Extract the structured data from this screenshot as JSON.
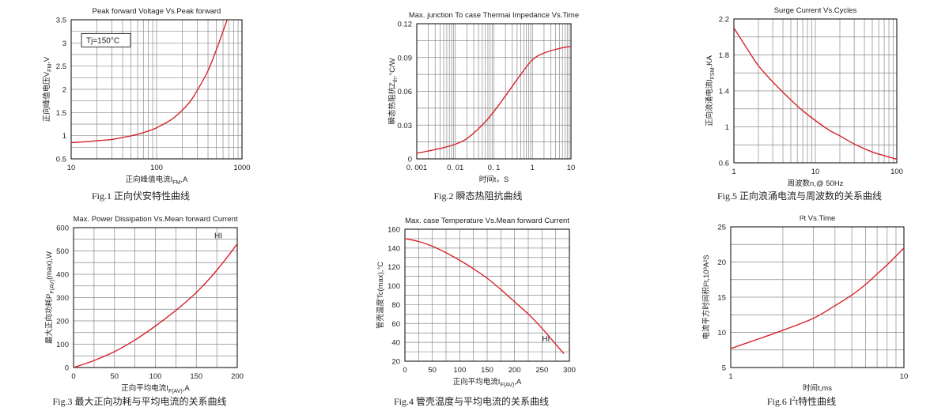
{
  "colors": {
    "curve": "#d8232a",
    "grid": "#8a8a8a",
    "axis": "#000000",
    "text": "#222222"
  },
  "chart_data": [
    {
      "id": "fig1",
      "type": "line",
      "title": "Peak forward Voltage Vs.Peak forward",
      "ylabel": "正向峰值电压V",
      "ylabel_sub": "FM",
      "ylabel_suffix": ",V",
      "xlabel": "正向峰值电流I",
      "xlabel_sub": "FM",
      "xlabel_suffix": ",A",
      "caption": "Fig.1 正向伏安特性曲线",
      "caption_sup": "",
      "caption_suffix": "",
      "xscale": "log",
      "xlim": [
        10,
        1000
      ],
      "ylim": [
        0.5,
        3.5
      ],
      "xticks": [
        10,
        100,
        1000
      ],
      "xticklabels": [
        "10",
        "100",
        "1000"
      ],
      "yticks": [
        0.5,
        1,
        1.5,
        2,
        2.5,
        3,
        3.5
      ],
      "yticklabels": [
        "0.5",
        "1",
        "1.5",
        "2",
        "2.5",
        "3",
        "3.5"
      ],
      "grid": true,
      "annotations": [
        {
          "text": "Tj=150°C",
          "x": 15,
          "y": 3.0,
          "boxed": true
        }
      ],
      "series": [
        {
          "x": [
            10,
            15,
            20,
            30,
            40,
            60,
            80,
            100,
            150,
            200,
            250,
            300,
            400,
            500,
            600,
            700
          ],
          "y": [
            0.85,
            0.87,
            0.89,
            0.92,
            0.96,
            1.03,
            1.1,
            1.17,
            1.35,
            1.55,
            1.75,
            1.98,
            2.4,
            2.85,
            3.25,
            3.6
          ]
        }
      ]
    },
    {
      "id": "fig2",
      "type": "line",
      "title": "Max. junction To case Thermai Impedance Vs.Time",
      "ylabel": "瞬态热阻抗Z",
      "ylabel_sub": "th",
      "ylabel_suffix": ",°C/W",
      "xlabel": "时间t，S",
      "xlabel_sub": "",
      "xlabel_suffix": "",
      "caption": "Fig.2 瞬态热阻抗曲线",
      "caption_sup": "",
      "caption_suffix": "",
      "xscale": "log",
      "xlim": [
        0.001,
        10
      ],
      "ylim": [
        0,
        0.12
      ],
      "xticks": [
        0.001,
        0.01,
        0.1,
        1,
        10
      ],
      "xticklabels": [
        "0. 001",
        "0. 01",
        "0. 1",
        "1",
        "10"
      ],
      "yticks": [
        0,
        0.03,
        0.06,
        0.09,
        0.12
      ],
      "yticklabels": [
        "0",
        "0.03",
        "0.06",
        "0.09",
        "0.12"
      ],
      "grid": true,
      "annotations": [],
      "series": [
        {
          "x": [
            0.001,
            0.002,
            0.005,
            0.01,
            0.02,
            0.05,
            0.1,
            0.2,
            0.5,
            1,
            2,
            5,
            10
          ],
          "y": [
            0.005,
            0.007,
            0.01,
            0.013,
            0.018,
            0.03,
            0.042,
            0.056,
            0.075,
            0.088,
            0.094,
            0.098,
            0.1
          ]
        }
      ]
    },
    {
      "id": "fig5",
      "type": "line",
      "title": "Surge Current Vs.Cycles",
      "ylabel": "正向浪涌电流I",
      "ylabel_sub": "FSM",
      "ylabel_suffix": ",KA",
      "xlabel": "周波数n,@ 50Hz",
      "xlabel_sub": "",
      "xlabel_suffix": "",
      "caption": "Fig.5 正向浪涌电流与周波数的关系曲线",
      "caption_sup": "",
      "caption_suffix": "",
      "xscale": "log",
      "xlim": [
        1,
        100
      ],
      "ylim": [
        0.6,
        2.2
      ],
      "xticks": [
        1,
        10,
        100
      ],
      "xticklabels": [
        "1",
        "10",
        "100"
      ],
      "yticks": [
        0.6,
        1,
        1.4,
        1.8,
        2.2
      ],
      "yticklabels": [
        "0.6",
        "1",
        "1.4",
        "1.8",
        "2.2"
      ],
      "grid": true,
      "annotations": [],
      "series": [
        {
          "x": [
            1,
            1.5,
            2,
            3,
            5,
            7,
            10,
            15,
            20,
            30,
            50,
            70,
            100
          ],
          "y": [
            2.1,
            1.85,
            1.68,
            1.5,
            1.3,
            1.18,
            1.07,
            0.96,
            0.9,
            0.81,
            0.72,
            0.68,
            0.64
          ]
        }
      ]
    },
    {
      "id": "fig3",
      "type": "line",
      "title": "Max. Power Dissipation Vs.Mean forward Current",
      "ylabel": "最大正向功耗P",
      "ylabel_sub": "F(AV)",
      "ylabel_suffix": "(max),W",
      "xlabel": "正向平均电流I",
      "xlabel_sub": "F(AV)",
      "xlabel_suffix": ",A",
      "caption": "Fig.3 最大正向功耗与平均电流的关系曲线",
      "caption_sup": "",
      "caption_suffix": "",
      "xscale": "linear",
      "xlim": [
        0,
        200
      ],
      "ylim": [
        0,
        600
      ],
      "xticks": [
        0,
        50,
        100,
        150,
        200
      ],
      "xticklabels": [
        "0",
        "50",
        "100",
        "150",
        "200"
      ],
      "yticks": [
        0,
        100,
        200,
        300,
        400,
        500,
        600
      ],
      "yticklabels": [
        "0",
        "100",
        "200",
        "300",
        "400",
        "500",
        "600"
      ],
      "grid": true,
      "annotations": [
        {
          "text": "HI",
          "x": 172,
          "y": 555,
          "boxed": false
        }
      ],
      "series": [
        {
          "x": [
            0,
            25,
            50,
            75,
            100,
            125,
            150,
            175,
            200
          ],
          "y": [
            0,
            30,
            68,
            118,
            178,
            245,
            322,
            417,
            530
          ]
        }
      ]
    },
    {
      "id": "fig4",
      "type": "line",
      "title": "Max. case Temperature Vs.Mean forward Current",
      "ylabel": "管壳温度Tc(max),°C",
      "ylabel_sub": "",
      "ylabel_suffix": "",
      "xlabel": "正向平均电流I",
      "xlabel_sub": "F(AV)",
      "xlabel_suffix": ",A",
      "caption": "Fig.4 管壳温度与平均电流的关系曲线",
      "caption_sup": "",
      "caption_suffix": "",
      "xscale": "linear",
      "xlim": [
        0,
        300
      ],
      "ylim": [
        20,
        160
      ],
      "xticks": [
        0,
        50,
        100,
        150,
        200,
        250,
        300
      ],
      "xticklabels": [
        "0",
        "50",
        "100",
        "150",
        "200",
        "250",
        "300"
      ],
      "yticks": [
        20,
        40,
        60,
        80,
        100,
        120,
        140,
        160
      ],
      "yticklabels": [
        "20",
        "40",
        "60",
        "80",
        "100",
        "120",
        "140",
        "160"
      ],
      "grid": true,
      "annotations": [
        {
          "text": "HI",
          "x": 250,
          "y": 41,
          "boxed": false
        }
      ],
      "series": [
        {
          "x": [
            0,
            25,
            50,
            75,
            100,
            125,
            150,
            175,
            200,
            225,
            250,
            275,
            290
          ],
          "y": [
            150,
            147,
            142,
            135,
            127,
            118,
            108,
            96,
            83,
            70,
            55,
            38,
            28
          ]
        }
      ]
    },
    {
      "id": "fig6",
      "type": "line",
      "title": "I²t  Vs.Time",
      "ylabel": "电流平方时间积I²t,10³A²S",
      "ylabel_sub": "",
      "ylabel_suffix": "",
      "xlabel": "时间t,ms",
      "xlabel_sub": "",
      "xlabel_suffix": "",
      "caption": "Fig.6 I",
      "caption_sup": "2",
      "caption_suffix": "t特性曲线",
      "xscale": "log",
      "xlim": [
        1,
        10
      ],
      "ylim": [
        5,
        25
      ],
      "xticks": [
        1,
        10
      ],
      "xticklabels": [
        "1",
        "10"
      ],
      "yticks": [
        5,
        10,
        15,
        20,
        25
      ],
      "yticklabels": [
        "5",
        "10",
        "15",
        "20",
        "25"
      ],
      "grid": true,
      "annotations": [],
      "series": [
        {
          "x": [
            1,
            1.5,
            2,
            3,
            4,
            5,
            6,
            7,
            8,
            10
          ],
          "y": [
            7.7,
            9.2,
            10.3,
            12,
            13.8,
            15.3,
            16.8,
            18.3,
            19.6,
            22
          ]
        }
      ]
    }
  ]
}
